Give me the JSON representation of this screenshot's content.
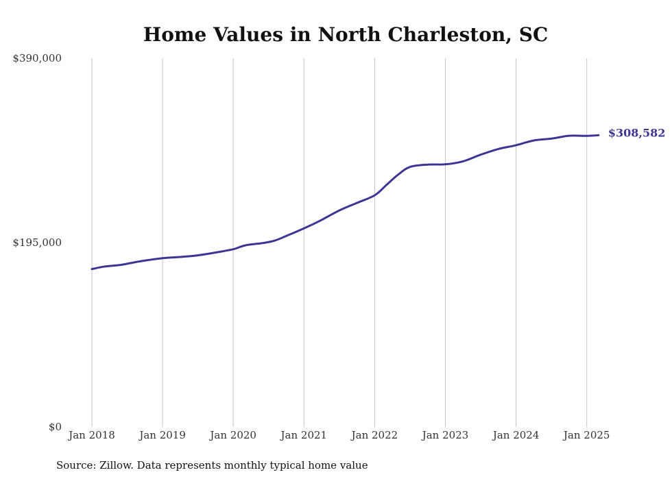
{
  "chart_data": {
    "type": "line",
    "title": "Home Values in North Charleston, SC",
    "source": "Source: Zillow. Data represents monthly typical home value",
    "ylim": [
      0,
      390000
    ],
    "y_tick_labels": [
      "$0",
      "$195,000",
      "$390,000"
    ],
    "y_tick_values": [
      0,
      195000,
      390000
    ],
    "x_tick_labels": [
      "Jan 2018",
      "Jan 2019",
      "Jan 2020",
      "Jan 2021",
      "Jan 2022",
      "Jan 2023",
      "Jan 2024",
      "Jan 2025"
    ],
    "x_tick_dates": [
      "2018-01",
      "2019-01",
      "2020-01",
      "2021-01",
      "2022-01",
      "2023-01",
      "2024-01",
      "2025-01"
    ],
    "xlim": [
      "2018-01",
      "2025-03"
    ],
    "grid": "vertical",
    "line_color": "#3d3594",
    "end_label": "$308,582",
    "series": [
      {
        "values": [
          {
            "x": "2018-01",
            "y": 167000
          },
          {
            "x": "2018-03",
            "y": 169500
          },
          {
            "x": "2018-06",
            "y": 171500
          },
          {
            "x": "2018-09",
            "y": 175000
          },
          {
            "x": "2019-01",
            "y": 178500
          },
          {
            "x": "2019-04",
            "y": 179800
          },
          {
            "x": "2019-07",
            "y": 181500
          },
          {
            "x": "2019-10",
            "y": 184500
          },
          {
            "x": "2020-01",
            "y": 188000
          },
          {
            "x": "2020-03",
            "y": 192000
          },
          {
            "x": "2020-06",
            "y": 194500
          },
          {
            "x": "2020-08",
            "y": 197000
          },
          {
            "x": "2020-10",
            "y": 202000
          },
          {
            "x": "2021-01",
            "y": 210000
          },
          {
            "x": "2021-04",
            "y": 219000
          },
          {
            "x": "2021-07",
            "y": 229000
          },
          {
            "x": "2021-10",
            "y": 237000
          },
          {
            "x": "2022-01",
            "y": 245000
          },
          {
            "x": "2022-03",
            "y": 256000
          },
          {
            "x": "2022-05",
            "y": 267000
          },
          {
            "x": "2022-07",
            "y": 275000
          },
          {
            "x": "2022-10",
            "y": 277500
          },
          {
            "x": "2023-01",
            "y": 277800
          },
          {
            "x": "2023-04",
            "y": 281000
          },
          {
            "x": "2023-07",
            "y": 288000
          },
          {
            "x": "2023-10",
            "y": 294000
          },
          {
            "x": "2024-01",
            "y": 298000
          },
          {
            "x": "2024-04",
            "y": 303000
          },
          {
            "x": "2024-07",
            "y": 305000
          },
          {
            "x": "2024-10",
            "y": 308000
          },
          {
            "x": "2025-01",
            "y": 307900
          },
          {
            "x": "2025-03",
            "y": 308582
          }
        ]
      }
    ]
  }
}
